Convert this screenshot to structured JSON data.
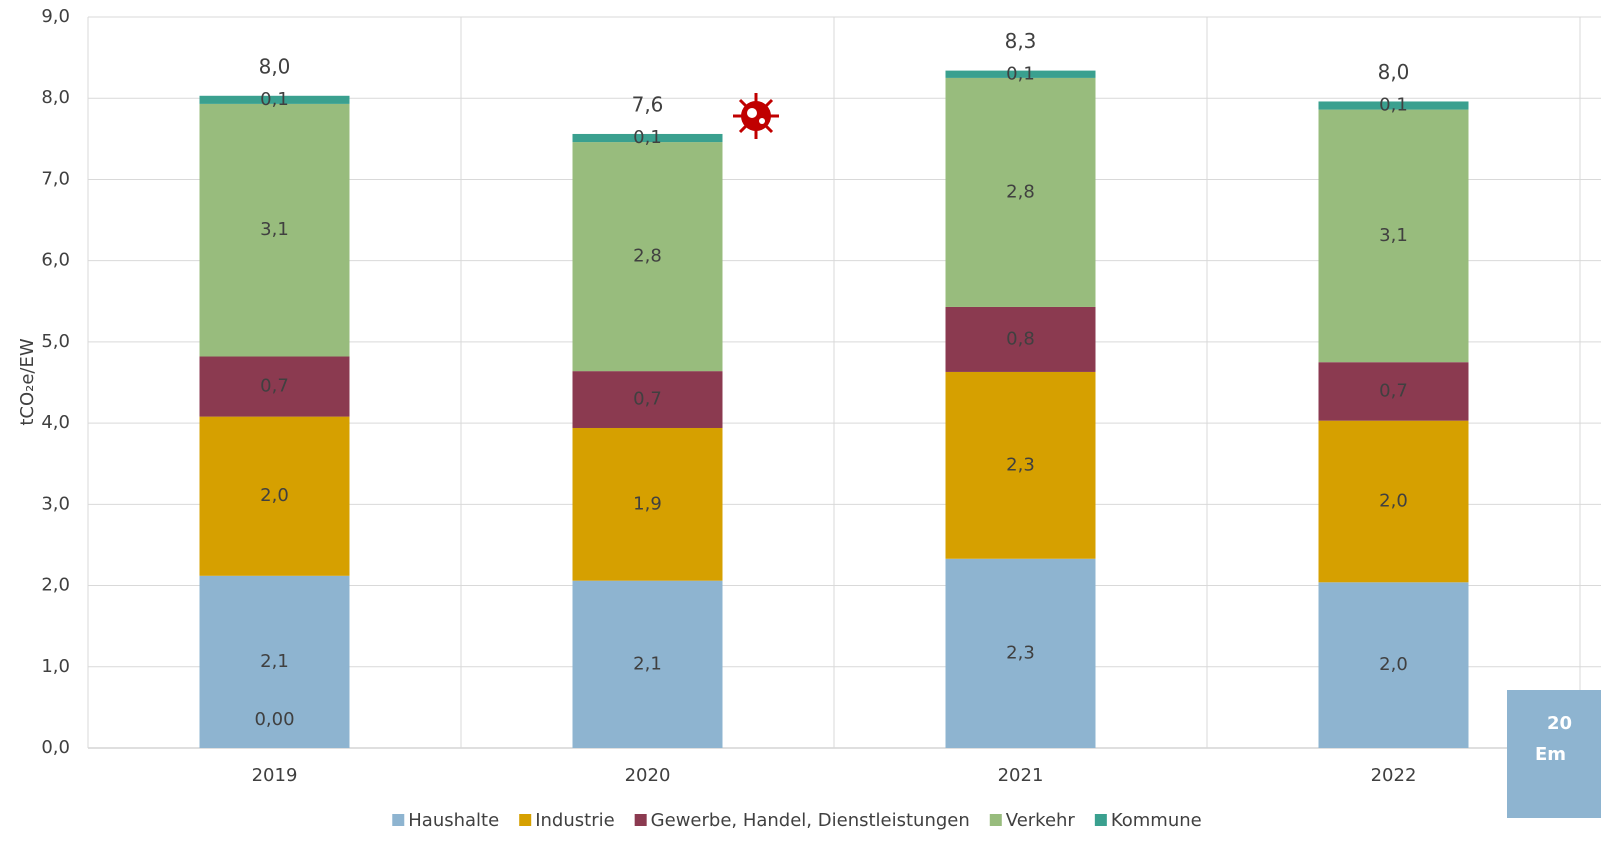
{
  "chart_data": {
    "type": "stacked_bar",
    "y_label": "tCO₂e/EW",
    "categories": [
      "2019",
      "2020",
      "2021",
      "2022"
    ],
    "series": [
      {
        "name": "Haushalte",
        "color": "#8eb4d0",
        "values": [
          2.12,
          2.06,
          2.33,
          2.04
        ],
        "value_labels": [
          "2,1",
          "2,1",
          "2,3",
          "2,0"
        ]
      },
      {
        "name": "Industrie",
        "color": "#d6a000",
        "values": [
          1.96,
          1.88,
          2.3,
          1.99
        ],
        "value_labels": [
          "2,0",
          "1,9",
          "2,3",
          "2,0"
        ]
      },
      {
        "name": "Gewerbe, Handel, Dienstleistungen",
        "color": "#8b3a50",
        "values": [
          0.74,
          0.7,
          0.8,
          0.72
        ],
        "value_labels": [
          "0,7",
          "0,7",
          "0,8",
          "0,7"
        ]
      },
      {
        "name": "Verkehr",
        "color": "#98bc7d",
        "values": [
          3.11,
          2.82,
          2.82,
          3.11
        ],
        "value_labels": [
          "3,1",
          "2,8",
          "2,8",
          "3,1"
        ]
      },
      {
        "name": "Kommune",
        "color": "#3aa08f",
        "values": [
          0.1,
          0.1,
          0.09,
          0.1
        ],
        "value_labels": [
          "0,1",
          "0,1",
          "0,1",
          "0,1"
        ]
      }
    ],
    "total_labels": [
      "8,0",
      "7,6",
      "8,3",
      "8,0"
    ],
    "annotations": [
      {
        "text": "0,00",
        "category": "2019"
      }
    ],
    "side_box_text": [
      "20",
      "Em"
    ],
    "ylim": [
      0,
      9
    ],
    "yticks": [
      {
        "value": 0,
        "label": "0,0"
      },
      {
        "value": 1,
        "label": "1,0"
      },
      {
        "value": 2,
        "label": "2,0"
      },
      {
        "value": 3,
        "label": "3,0"
      },
      {
        "value": 4,
        "label": "4,0"
      },
      {
        "value": 5,
        "label": "5,0"
      },
      {
        "value": 6,
        "label": "6,0"
      },
      {
        "value": 7,
        "label": "7,0"
      },
      {
        "value": 8,
        "label": "8,0"
      },
      {
        "value": 9,
        "label": "9,0"
      }
    ],
    "grid": true,
    "legend": "bottom"
  }
}
